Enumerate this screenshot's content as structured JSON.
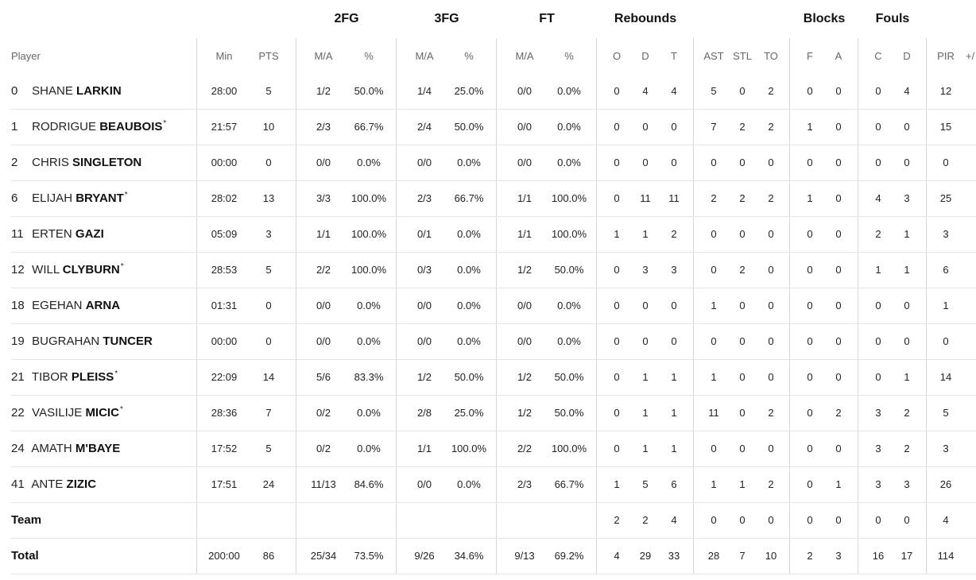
{
  "groups": {
    "fg2": "2FG",
    "fg3": "3FG",
    "ft": "FT",
    "rebounds": "Rebounds",
    "blocks": "Blocks",
    "fouls": "Fouls"
  },
  "columns": {
    "player": "Player",
    "min": "Min",
    "pts": "PTS",
    "fg2_ma": "M/A",
    "fg2_pct": "%",
    "fg3_ma": "M/A",
    "fg3_pct": "%",
    "ft_ma": "M/A",
    "ft_pct": "%",
    "reb_o": "O",
    "reb_d": "D",
    "reb_t": "T",
    "ast": "AST",
    "stl": "STL",
    "to": "TO",
    "blk_f": "F",
    "blk_a": "A",
    "foul_c": "C",
    "foul_d": "D",
    "pir": "PIR",
    "pm": "+/"
  },
  "players": [
    {
      "num": "0",
      "first": "SHANE",
      "last": "LARKIN",
      "star": "",
      "min": "28:00",
      "pts": "5",
      "fg2": "1/2",
      "fg2p": "50.0%",
      "fg3": "1/4",
      "fg3p": "25.0%",
      "ft": "0/0",
      "ftp": "0.0%",
      "o": "0",
      "d": "4",
      "t": "4",
      "ast": "5",
      "stl": "0",
      "to": "2",
      "bf": "0",
      "ba": "0",
      "fc": "0",
      "fd": "4",
      "pir": "12"
    },
    {
      "num": "1",
      "first": "RODRIGUE",
      "last": "BEAUBOIS",
      "star": "*",
      "min": "21:57",
      "pts": "10",
      "fg2": "2/3",
      "fg2p": "66.7%",
      "fg3": "2/4",
      "fg3p": "50.0%",
      "ft": "0/0",
      "ftp": "0.0%",
      "o": "0",
      "d": "0",
      "t": "0",
      "ast": "7",
      "stl": "2",
      "to": "2",
      "bf": "1",
      "ba": "0",
      "fc": "0",
      "fd": "0",
      "pir": "15"
    },
    {
      "num": "2",
      "first": "CHRIS",
      "last": "SINGLETON",
      "star": "",
      "min": "00:00",
      "pts": "0",
      "fg2": "0/0",
      "fg2p": "0.0%",
      "fg3": "0/0",
      "fg3p": "0.0%",
      "ft": "0/0",
      "ftp": "0.0%",
      "o": "0",
      "d": "0",
      "t": "0",
      "ast": "0",
      "stl": "0",
      "to": "0",
      "bf": "0",
      "ba": "0",
      "fc": "0",
      "fd": "0",
      "pir": "0"
    },
    {
      "num": "6",
      "first": "ELIJAH",
      "last": "BRYANT",
      "star": "*",
      "min": "28:02",
      "pts": "13",
      "fg2": "3/3",
      "fg2p": "100.0%",
      "fg3": "2/3",
      "fg3p": "66.7%",
      "ft": "1/1",
      "ftp": "100.0%",
      "o": "0",
      "d": "11",
      "t": "11",
      "ast": "2",
      "stl": "2",
      "to": "2",
      "bf": "1",
      "ba": "0",
      "fc": "4",
      "fd": "3",
      "pir": "25"
    },
    {
      "num": "11",
      "first": "ERTEN",
      "last": "GAZI",
      "star": "",
      "min": "05:09",
      "pts": "3",
      "fg2": "1/1",
      "fg2p": "100.0%",
      "fg3": "0/1",
      "fg3p": "0.0%",
      "ft": "1/1",
      "ftp": "100.0%",
      "o": "1",
      "d": "1",
      "t": "2",
      "ast": "0",
      "stl": "0",
      "to": "0",
      "bf": "0",
      "ba": "0",
      "fc": "2",
      "fd": "1",
      "pir": "3"
    },
    {
      "num": "12",
      "first": "WILL",
      "last": "CLYBURN",
      "star": "*",
      "min": "28:53",
      "pts": "5",
      "fg2": "2/2",
      "fg2p": "100.0%",
      "fg3": "0/3",
      "fg3p": "0.0%",
      "ft": "1/2",
      "ftp": "50.0%",
      "o": "0",
      "d": "3",
      "t": "3",
      "ast": "0",
      "stl": "2",
      "to": "0",
      "bf": "0",
      "ba": "0",
      "fc": "1",
      "fd": "1",
      "pir": "6"
    },
    {
      "num": "18",
      "first": "EGEHAN",
      "last": "ARNA",
      "star": "",
      "min": "01:31",
      "pts": "0",
      "fg2": "0/0",
      "fg2p": "0.0%",
      "fg3": "0/0",
      "fg3p": "0.0%",
      "ft": "0/0",
      "ftp": "0.0%",
      "o": "0",
      "d": "0",
      "t": "0",
      "ast": "1",
      "stl": "0",
      "to": "0",
      "bf": "0",
      "ba": "0",
      "fc": "0",
      "fd": "0",
      "pir": "1"
    },
    {
      "num": "19",
      "first": "BUGRAHAN",
      "last": "TUNCER",
      "star": "",
      "min": "00:00",
      "pts": "0",
      "fg2": "0/0",
      "fg2p": "0.0%",
      "fg3": "0/0",
      "fg3p": "0.0%",
      "ft": "0/0",
      "ftp": "0.0%",
      "o": "0",
      "d": "0",
      "t": "0",
      "ast": "0",
      "stl": "0",
      "to": "0",
      "bf": "0",
      "ba": "0",
      "fc": "0",
      "fd": "0",
      "pir": "0"
    },
    {
      "num": "21",
      "first": "TIBOR",
      "last": "PLEISS",
      "star": "*",
      "min": "22:09",
      "pts": "14",
      "fg2": "5/6",
      "fg2p": "83.3%",
      "fg3": "1/2",
      "fg3p": "50.0%",
      "ft": "1/2",
      "ftp": "50.0%",
      "o": "0",
      "d": "1",
      "t": "1",
      "ast": "1",
      "stl": "0",
      "to": "0",
      "bf": "0",
      "ba": "0",
      "fc": "0",
      "fd": "1",
      "pir": "14"
    },
    {
      "num": "22",
      "first": "VASILIJE",
      "last": "MICIC",
      "star": "*",
      "min": "28:36",
      "pts": "7",
      "fg2": "0/2",
      "fg2p": "0.0%",
      "fg3": "2/8",
      "fg3p": "25.0%",
      "ft": "1/2",
      "ftp": "50.0%",
      "o": "0",
      "d": "1",
      "t": "1",
      "ast": "11",
      "stl": "0",
      "to": "2",
      "bf": "0",
      "ba": "2",
      "fc": "3",
      "fd": "2",
      "pir": "5"
    },
    {
      "num": "24",
      "first": "AMATH",
      "last": "M'BAYE",
      "star": "",
      "min": "17:52",
      "pts": "5",
      "fg2": "0/2",
      "fg2p": "0.0%",
      "fg3": "1/1",
      "fg3p": "100.0%",
      "ft": "2/2",
      "ftp": "100.0%",
      "o": "0",
      "d": "1",
      "t": "1",
      "ast": "0",
      "stl": "0",
      "to": "0",
      "bf": "0",
      "ba": "0",
      "fc": "3",
      "fd": "2",
      "pir": "3"
    },
    {
      "num": "41",
      "first": "ANTE",
      "last": "ZIZIC",
      "star": "",
      "min": "17:51",
      "pts": "24",
      "fg2": "11/13",
      "fg2p": "84.6%",
      "fg3": "0/0",
      "fg3p": "0.0%",
      "ft": "2/3",
      "ftp": "66.7%",
      "o": "1",
      "d": "5",
      "t": "6",
      "ast": "1",
      "stl": "1",
      "to": "2",
      "bf": "0",
      "ba": "1",
      "fc": "3",
      "fd": "3",
      "pir": "26"
    }
  ],
  "team": {
    "label": "Team",
    "min": "",
    "pts": "",
    "fg2": "",
    "fg2p": "",
    "fg3": "",
    "fg3p": "",
    "ft": "",
    "ftp": "",
    "o": "2",
    "d": "2",
    "t": "4",
    "ast": "0",
    "stl": "0",
    "to": "0",
    "bf": "0",
    "ba": "0",
    "fc": "0",
    "fd": "0",
    "pir": "4"
  },
  "total": {
    "label": "Total",
    "min": "200:00",
    "pts": "86",
    "fg2": "25/34",
    "fg2p": "73.5%",
    "fg3": "9/26",
    "fg3p": "34.6%",
    "ft": "9/13",
    "ftp": "69.2%",
    "o": "4",
    "d": "29",
    "t": "33",
    "ast": "28",
    "stl": "7",
    "to": "10",
    "bf": "2",
    "ba": "3",
    "fc": "16",
    "fd": "17",
    "pir": "114"
  }
}
